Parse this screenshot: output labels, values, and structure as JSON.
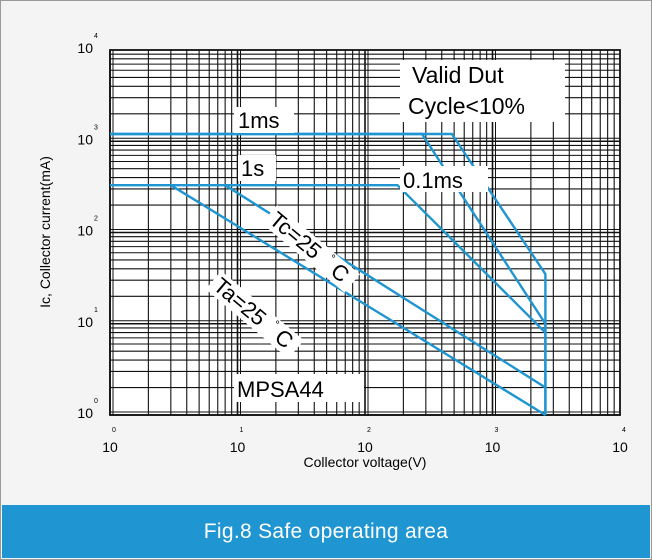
{
  "chart_data": {
    "type": "line",
    "xlabel": "Collector voltage(V)",
    "ylabel": "Ic, Collector current(mA)",
    "x_scale": "log",
    "y_scale": "log",
    "xlim": [
      1,
      10000
    ],
    "ylim": [
      1,
      10000
    ],
    "grid": true,
    "x_ticks": [
      {
        "base": "10",
        "exp": "0"
      },
      {
        "base": "10",
        "exp": "1"
      },
      {
        "base": "10",
        "exp": "2"
      },
      {
        "base": "10",
        "exp": "3"
      },
      {
        "base": "10",
        "exp": "4"
      }
    ],
    "y_ticks": [
      {
        "base": "10",
        "exp": "0"
      },
      {
        "base": "10",
        "exp": "1"
      },
      {
        "base": "10",
        "exp": "2"
      },
      {
        "base": "10",
        "exp": "3"
      },
      {
        "base": "10",
        "exp": "4"
      }
    ],
    "series": [
      {
        "name": "0.1ms",
        "color": "#1f95d1",
        "points": [
          [
            1,
            1200
          ],
          [
            480,
            1200
          ],
          [
            2600,
            35
          ],
          [
            2600,
            1
          ]
        ]
      },
      {
        "name": "1ms",
        "color": "#1f95d1",
        "points": [
          [
            1,
            1200
          ],
          [
            280,
            1200
          ],
          [
            2600,
            10
          ],
          [
            2600,
            1
          ]
        ]
      },
      {
        "name": "1s",
        "color": "#1f95d1",
        "points": [
          [
            1,
            330
          ],
          [
            180,
            330
          ],
          [
            2600,
            8
          ]
        ]
      },
      {
        "name": "Tc=25°C",
        "color": "#1f95d1",
        "points": [
          [
            8,
            330
          ],
          [
            2600,
            2
          ]
        ]
      },
      {
        "name": "Ta=25°C",
        "color": "#1f95d1",
        "points": [
          [
            3,
            330
          ],
          [
            2600,
            1
          ]
        ]
      }
    ],
    "annotations": [
      {
        "id": "valid",
        "line1": "Valid Dut",
        "line2": "Cycle<10%"
      },
      {
        "id": "ms1",
        "text": "1ms"
      },
      {
        "id": "s1",
        "text": "1s"
      },
      {
        "id": "ms01",
        "text": "0.1ms"
      },
      {
        "id": "tc",
        "text": "Tc=25",
        "deg": "°",
        "unit": "C"
      },
      {
        "id": "ta",
        "text": "Ta=25",
        "deg": "°",
        "unit": "C"
      },
      {
        "id": "part",
        "text": "MPSA44"
      }
    ]
  },
  "caption": "Fig.8 Safe operating area"
}
